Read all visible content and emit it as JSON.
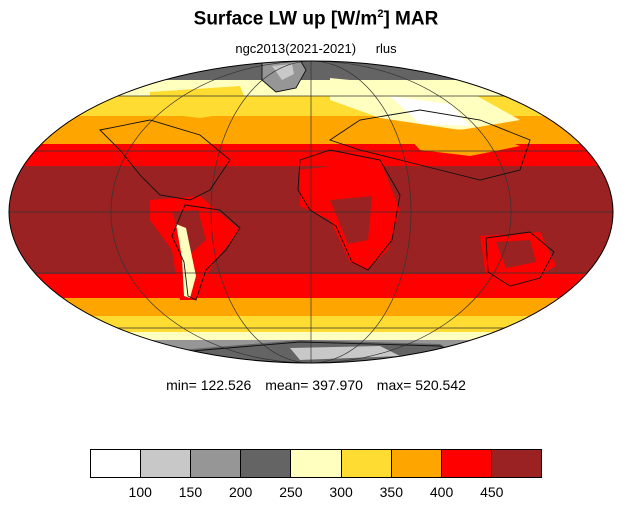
{
  "title": {
    "main": "Surface LW up [W/m",
    "sup": "2",
    "end": "]  MAR"
  },
  "subtitle": {
    "dataset": "ngc2013(2021-2021)",
    "variable": "rlus"
  },
  "stats": {
    "min": "min= 122.526",
    "mean": "mean= 397.970",
    "max": "max= 520.542"
  },
  "legend": {
    "colors": [
      "#ffffff",
      "#c8c8c8",
      "#969696",
      "#646464",
      "#ffffc0",
      "#ffdc32",
      "#ffa500",
      "#ff0000",
      "#9b2222"
    ],
    "labels": [
      "100",
      "150",
      "200",
      "250",
      "300",
      "350",
      "400",
      "450"
    ]
  },
  "map_colors": {
    "ocean_tropics": "#9b2222",
    "red": "#ff0000",
    "orange": "#ffa500",
    "yellow": "#ffdc32",
    "pale": "#ffffc0",
    "grey_dark": "#646464",
    "grey_mid": "#969696",
    "grey_light": "#c8c8c8"
  }
}
